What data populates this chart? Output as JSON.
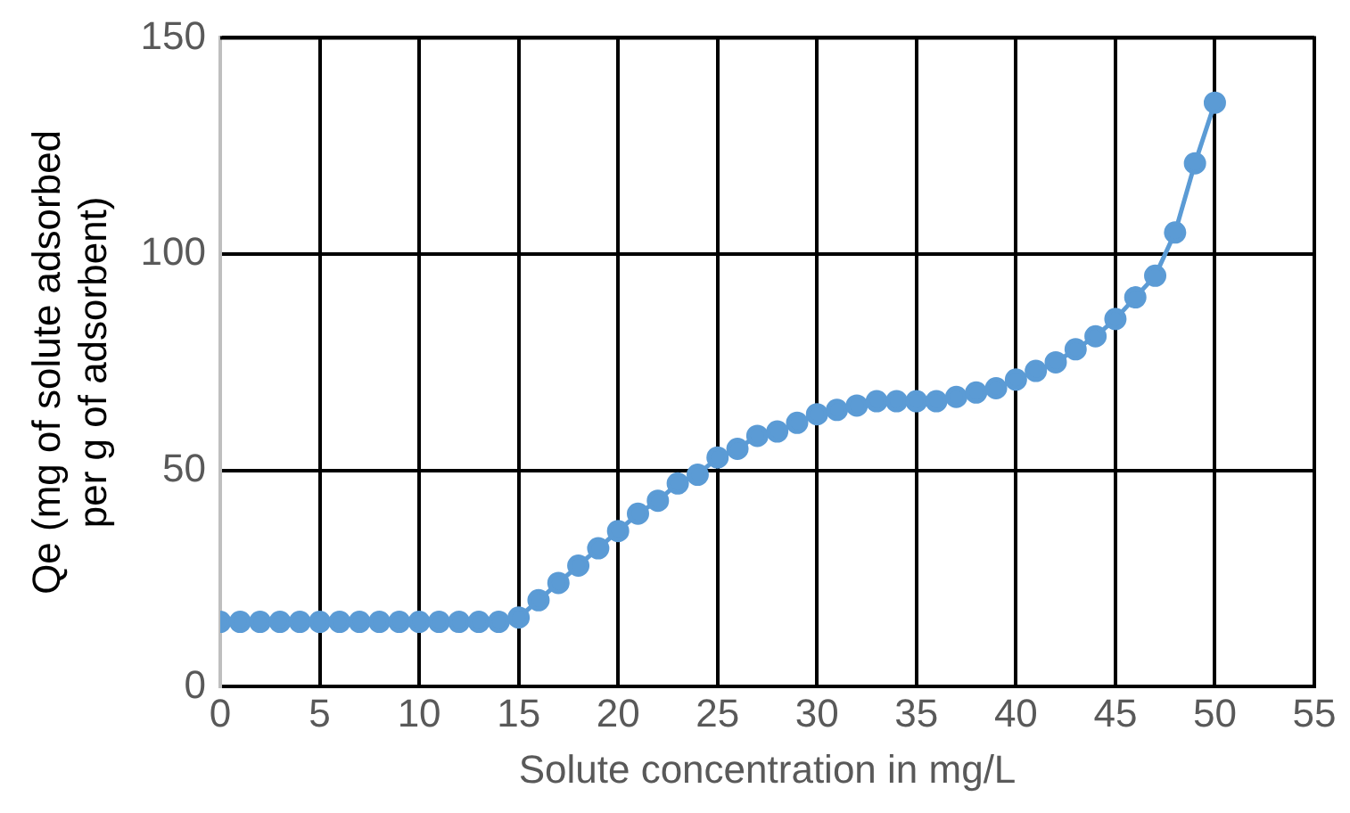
{
  "chart_data": {
    "type": "line",
    "xlabel": "Solute concentration in mg/L",
    "ylabel": "Qe (mg of solute adsorbed per g of adsorbent)",
    "x": [
      0,
      1,
      2,
      3,
      4,
      5,
      6,
      7,
      8,
      9,
      10,
      11,
      12,
      13,
      14,
      15,
      16,
      17,
      18,
      19,
      20,
      21,
      22,
      23,
      24,
      25,
      26,
      27,
      28,
      29,
      30,
      31,
      32,
      33,
      34,
      35,
      36,
      37,
      38,
      39,
      40,
      41,
      42,
      43,
      44,
      45,
      46,
      47,
      48,
      49,
      50
    ],
    "series": [
      {
        "color": "#5b9bd5",
        "values": [
          15,
          15,
          15,
          15,
          15,
          15,
          15,
          15,
          15,
          15,
          15,
          15,
          15,
          15,
          15,
          16,
          20,
          24,
          28,
          32,
          36,
          40,
          43,
          47,
          49,
          53,
          55,
          58,
          59,
          61,
          63,
          64,
          65,
          66,
          66,
          66,
          66,
          67,
          68,
          69,
          71,
          73,
          75,
          78,
          81,
          85,
          90,
          95,
          105,
          121,
          135
        ]
      }
    ],
    "xlim": [
      0,
      55
    ],
    "xticks": [
      0,
      5,
      10,
      15,
      20,
      25,
      30,
      35,
      40,
      45,
      50,
      55
    ],
    "ylim": [
      0,
      150
    ],
    "yticks": [
      0,
      50,
      100,
      150
    ],
    "grid": true,
    "legend": false,
    "marker": "circle",
    "line_style": "solid"
  }
}
